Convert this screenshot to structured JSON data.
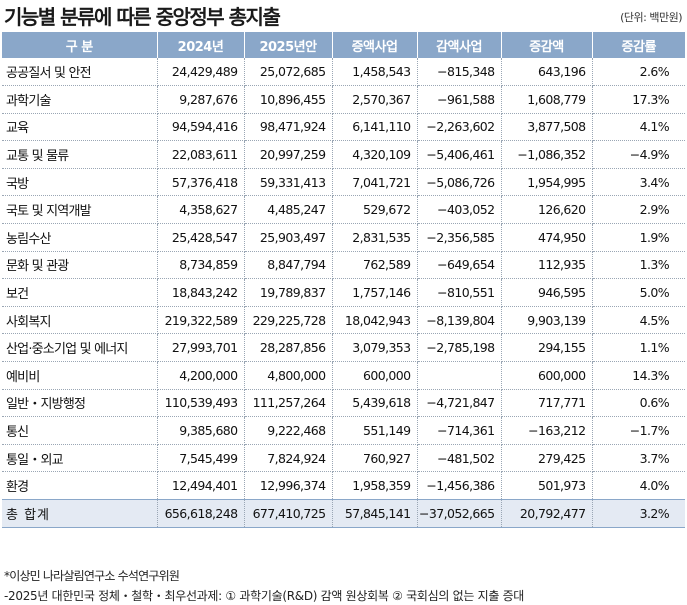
{
  "title": "기능별 분류에 따른 중앙정부 총지출",
  "unit": "(단위: 백만원)",
  "headers": [
    "구 분",
    "2024년",
    "2025년안",
    "증액사업",
    "감액사업",
    "증감액",
    "증감률"
  ],
  "rows": [
    [
      "공공질서 및 안전",
      "24,429,489",
      "25,072,685",
      "1,458,543",
      "−815,348",
      "643,196",
      "2.6%"
    ],
    [
      "과학기술",
      "9,287,676",
      "10,896,455",
      "2,570,367",
      "−961,588",
      "1,608,779",
      "17.3%"
    ],
    [
      "교육",
      "94,594,416",
      "98,471,924",
      "6,141,110",
      "−2,263,602",
      "3,877,508",
      "4.1%"
    ],
    [
      "교통 및 물류",
      "22,083,611",
      "20,997,259",
      "4,320,109",
      "−5,406,461",
      "−1,086,352",
      "−4.9%"
    ],
    [
      "국방",
      "57,376,418",
      "59,331,413",
      "7,041,721",
      "−5,086,726",
      "1,954,995",
      "3.4%"
    ],
    [
      "국토 및 지역개발",
      "4,358,627",
      "4,485,247",
      "529,672",
      "−403,052",
      "126,620",
      "2.9%"
    ],
    [
      "농림수산",
      "25,428,547",
      "25,903,497",
      "2,831,535",
      "−2,356,585",
      "474,950",
      "1.9%"
    ],
    [
      "문화 및 관광",
      "8,734,859",
      "8,847,794",
      "762,589",
      "−649,654",
      "112,935",
      "1.3%"
    ],
    [
      "보건",
      "18,843,242",
      "19,789,837",
      "1,757,146",
      "−810,551",
      "946,595",
      "5.0%"
    ],
    [
      "사회복지",
      "219,322,589",
      "229,225,728",
      "18,042,943",
      "−8,139,804",
      "9,903,139",
      "4.5%"
    ],
    [
      "산업·중소기업 및 에너지",
      "27,993,701",
      "28,287,856",
      "3,079,353",
      "−2,785,198",
      "294,155",
      "1.1%"
    ],
    [
      "예비비",
      "4,200,000",
      "4,800,000",
      "600,000",
      "",
      "600,000",
      "14.3%"
    ],
    [
      "일반・지방행정",
      "110,539,493",
      "111,257,264",
      "5,439,618",
      "−4,721,847",
      "717,771",
      "0.6%"
    ],
    [
      "통신",
      "9,385,680",
      "9,222,468",
      "551,149",
      "−714,361",
      "−163,212",
      "−1.7%"
    ],
    [
      "통일・외교",
      "7,545,499",
      "7,824,924",
      "760,927",
      "−481,502",
      "279,425",
      "3.7%"
    ],
    [
      "환경",
      "12,494,401",
      "12,996,374",
      "1,958,359",
      "−1,456,386",
      "501,973",
      "4.0%"
    ]
  ],
  "total": [
    "총 합계",
    "656,618,248",
    "677,410,725",
    "57,845,141",
    "−37,052,665",
    "20,792,477",
    "3.2%"
  ],
  "footer_source": "*이상민 나라살림연구소 수석연구위원",
  "footer_report": "-2025년 대한민국 정체・철학・최우선과제: ① 과학기술(R&D) 감액 원상회복   ② 국회심의 없는 지출 증대",
  "colors": {
    "header_bg": "#8aa7c9",
    "total_bg": "#e4eaf3"
  }
}
